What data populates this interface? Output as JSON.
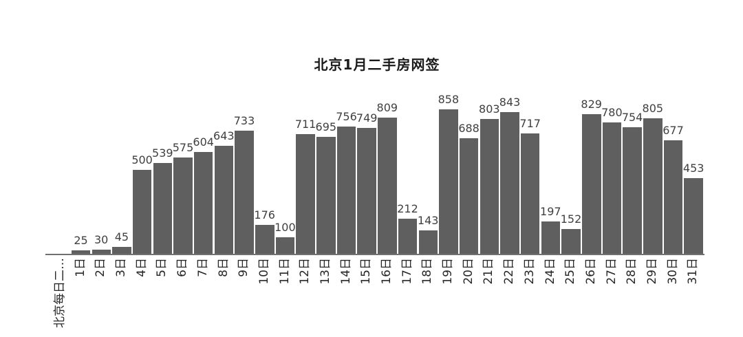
{
  "page": {
    "background_color": "#ffffff"
  },
  "chart_data": {
    "type": "bar",
    "title": "北京1月二手房网签",
    "x_axis_leading_label": "北京每日二…",
    "categories": [
      "1日",
      "2日",
      "3日",
      "4日",
      "5日",
      "6日",
      "7日",
      "8日",
      "9日",
      "10日",
      "11日",
      "12日",
      "13日",
      "14日",
      "15日",
      "16日",
      "17日",
      "18日",
      "19日",
      "20日",
      "21日",
      "22日",
      "23日",
      "24日",
      "25日",
      "26日",
      "27日",
      "28日",
      "29日",
      "30日",
      "31日"
    ],
    "values": [
      25,
      30,
      45,
      500,
      539,
      575,
      604,
      643,
      733,
      176,
      100,
      711,
      695,
      756,
      749,
      809,
      212,
      143,
      858,
      688,
      803,
      843,
      717,
      197,
      152,
      829,
      780,
      754,
      805,
      677,
      453
    ],
    "xlabel": "",
    "ylabel": "",
    "ylim": [
      0,
      858
    ],
    "grid": false,
    "legend": "none",
    "y_axis_visible": false,
    "value_labels_visible": true,
    "bar_color": "#5f5f5f",
    "value_label_color": "#3f3f3f",
    "axis_line_color": "#707070",
    "tick_label_color": "#262626",
    "title_color": "#1a1a1a"
  }
}
